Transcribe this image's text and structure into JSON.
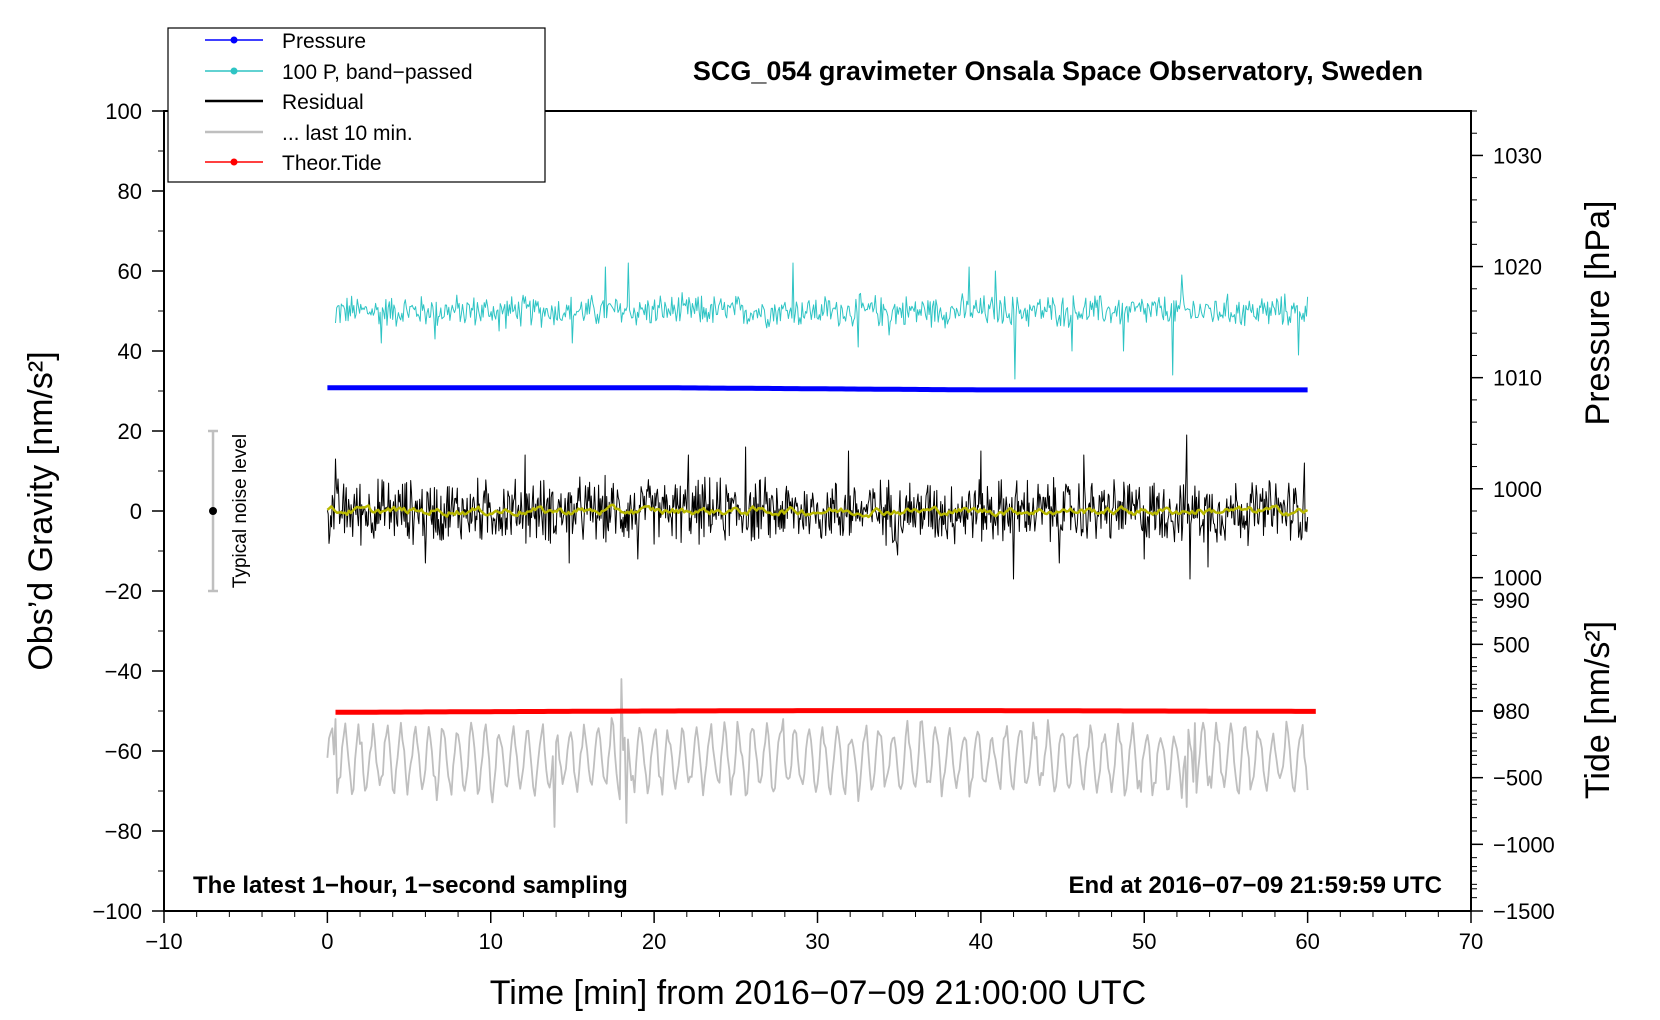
{
  "chart_data": {
    "type": "line",
    "title": "SCG_054 gravimeter Onsala Space Observatory, Sweden",
    "xlabel": "Time [min] from 2016−07−09 21:00:00 UTC",
    "ylabel_left": "Obs’d Gravity [nm/s²]",
    "ylabel_right_pressure": "Pressure [hPa]",
    "ylabel_right_tide": "Tide [nm/s²]",
    "xlim": [
      -10,
      70
    ],
    "ylim": [
      -100,
      100
    ],
    "pressure_axis_range": [
      962,
      1034
    ],
    "tide_axis_range": [
      -1500,
      4500
    ],
    "x_ticks": [
      "−10",
      "0",
      "10",
      "20",
      "30",
      "40",
      "50",
      "60",
      "70"
    ],
    "y_ticks_left": [
      "−100",
      "−80",
      "−60",
      "−40",
      "−20",
      "0",
      "20",
      "40",
      "60",
      "80",
      "100"
    ],
    "pressure_ticks": [
      "980",
      "990",
      "1000",
      "1010",
      "1020",
      "1030"
    ],
    "tide_ticks": [
      "−1500",
      "−1000",
      "−500",
      "0",
      "500",
      "1000"
    ],
    "grid": false,
    "legend_position": "top-left",
    "legend": [
      {
        "label": "Pressure",
        "color": "#0000ff",
        "marker": true
      },
      {
        "label": "100 P, band−passed",
        "color": "#2ec4c4",
        "marker": true
      },
      {
        "label": "Residual",
        "color": "#000000",
        "marker": false
      },
      {
        "label": "... last 10 min.",
        "color": "#bfbfbf",
        "marker": false
      },
      {
        "label": "Theor.Tide",
        "color": "#ff0000",
        "marker": true
      }
    ],
    "annotations": {
      "bottom_left": "The latest 1−hour, 1−second sampling",
      "bottom_right": "End at 2016−07−09 21:59:59 UTC",
      "noise_label": "Typical noise level"
    },
    "noise_bar": {
      "x": -7,
      "center": 0,
      "low": -20,
      "high": 20
    },
    "series": [
      {
        "name": "Pressure",
        "axis": "pressure",
        "color": "#0000ff",
        "x": [
          0,
          10,
          20,
          30,
          40,
          50,
          60
        ],
        "values": [
          1009.1,
          1009.1,
          1009.1,
          1009.0,
          1008.9,
          1008.9,
          1008.9
        ]
      },
      {
        "name": "100 P, band−passed",
        "axis": "left",
        "color": "#2ec4c4",
        "x_start": 0.5,
        "x_end": 60,
        "center": 50,
        "amplitude": 4,
        "spikes": [
          [
            0.5,
            47
          ],
          [
            3.3,
            42
          ],
          [
            6.6,
            43
          ],
          [
            10.5,
            45
          ],
          [
            15,
            42
          ],
          [
            17,
            61
          ],
          [
            18.4,
            62
          ],
          [
            28.5,
            62
          ],
          [
            32.5,
            41
          ],
          [
            34.4,
            44
          ],
          [
            39.3,
            61
          ],
          [
            40.9,
            60
          ],
          [
            42.1,
            33
          ],
          [
            45.6,
            40
          ],
          [
            48.7,
            40
          ],
          [
            51.7,
            34
          ],
          [
            52.3,
            59
          ],
          [
            59.4,
            39
          ]
        ]
      },
      {
        "name": "Residual",
        "axis": "left",
        "color": "#000000",
        "x_start": 0,
        "x_end": 60,
        "center": 0,
        "amplitude": 8,
        "spikes": [
          [
            0.5,
            13
          ],
          [
            6,
            -13
          ],
          [
            12.1,
            14
          ],
          [
            14.8,
            -13
          ],
          [
            19,
            -12
          ],
          [
            22.1,
            14
          ],
          [
            25.6,
            16
          ],
          [
            31.9,
            15
          ],
          [
            34.9,
            -11
          ],
          [
            40,
            15
          ],
          [
            42,
            -17
          ],
          [
            44.8,
            -13
          ],
          [
            46.3,
            14
          ],
          [
            50,
            -12
          ],
          [
            52.6,
            19
          ],
          [
            52.8,
            -17
          ],
          [
            53.9,
            -14
          ],
          [
            59.8,
            12
          ]
        ]
      },
      {
        "name": "Residual (smoothed)",
        "axis": "left",
        "color": "#b8b800",
        "x_start": 0,
        "x_end": 60,
        "center": 0,
        "amplitude": 1.2
      },
      {
        "name": "... last 10 min.",
        "axis": "left",
        "color": "#bfbfbf",
        "x_start": 0,
        "x_end": 60,
        "center": -62,
        "amplitude": 8,
        "spikes": [
          [
            0.5,
            -52
          ],
          [
            13.9,
            -79
          ],
          [
            18,
            -42
          ],
          [
            18.3,
            -78
          ],
          [
            27.9,
            -52
          ],
          [
            53.1,
            -53
          ],
          [
            52.6,
            -74
          ]
        ]
      },
      {
        "name": "Theor.Tide",
        "axis": "tide",
        "color": "#ff0000",
        "x": [
          0.5,
          10,
          20,
          30,
          40,
          50,
          60.5
        ],
        "values": [
          -10,
          -5,
          0,
          3,
          3,
          0,
          -3
        ]
      }
    ]
  }
}
